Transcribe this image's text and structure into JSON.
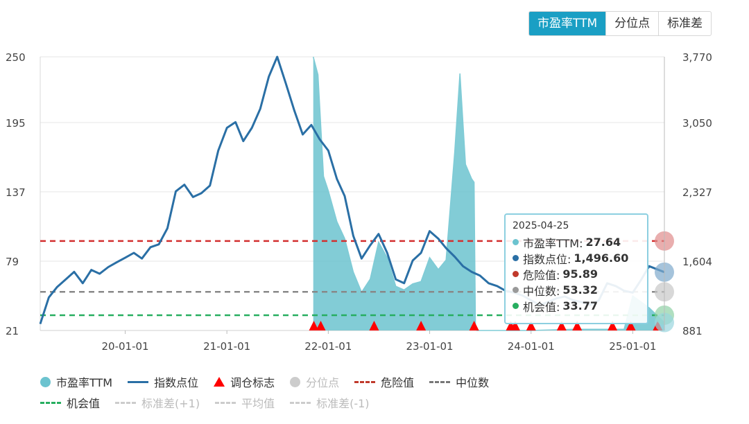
{
  "tabs": [
    {
      "label": "市盈率TTM",
      "active": true
    },
    {
      "label": "分位点",
      "active": false
    },
    {
      "label": "标准差",
      "active": false
    }
  ],
  "chart_data": {
    "type": "line",
    "left_axis": {
      "ticks": [
        21,
        79,
        137,
        195,
        250
      ],
      "range": [
        21,
        250
      ]
    },
    "right_axis": {
      "ticks": [
        881,
        1604,
        2327,
        3050,
        3770
      ],
      "range": [
        881,
        3770
      ]
    },
    "x_axis": {
      "ticks": [
        "20-01-01",
        "21-01-01",
        "22-01-01",
        "23-01-01",
        "24-01-01",
        "25-01-01"
      ],
      "range": [
        "2019-03-01",
        "2025-04-25"
      ]
    },
    "reference_lines": [
      {
        "name": "危险值",
        "value": 95.89,
        "color": "#d32f2f"
      },
      {
        "name": "中位数",
        "value": 53.32,
        "color": "#888888"
      },
      {
        "name": "机会值",
        "value": 33.77,
        "color": "#27ae60"
      }
    ],
    "series": [
      {
        "name": "指数点位",
        "axis": "right",
        "color": "#2a6fa5",
        "points": [
          [
            "2019-03-01",
            950
          ],
          [
            "2019-04-01",
            1230
          ],
          [
            "2019-05-01",
            1340
          ],
          [
            "2019-06-01",
            1420
          ],
          [
            "2019-07-01",
            1500
          ],
          [
            "2019-08-01",
            1380
          ],
          [
            "2019-09-01",
            1520
          ],
          [
            "2019-10-01",
            1480
          ],
          [
            "2019-11-01",
            1550
          ],
          [
            "2019-12-01",
            1600
          ],
          [
            "2020-01-01",
            1650
          ],
          [
            "2020-02-01",
            1700
          ],
          [
            "2020-03-01",
            1640
          ],
          [
            "2020-04-01",
            1760
          ],
          [
            "2020-05-01",
            1790
          ],
          [
            "2020-06-01",
            1960
          ],
          [
            "2020-07-01",
            2350
          ],
          [
            "2020-08-01",
            2420
          ],
          [
            "2020-09-01",
            2290
          ],
          [
            "2020-10-01",
            2330
          ],
          [
            "2020-11-01",
            2410
          ],
          [
            "2020-12-01",
            2780
          ],
          [
            "2021-01-01",
            3020
          ],
          [
            "2021-02-01",
            3080
          ],
          [
            "2021-03-01",
            2880
          ],
          [
            "2021-04-01",
            3020
          ],
          [
            "2021-05-01",
            3220
          ],
          [
            "2021-06-01",
            3560
          ],
          [
            "2021-07-01",
            3770
          ],
          [
            "2021-08-01",
            3490
          ],
          [
            "2021-09-01",
            3200
          ],
          [
            "2021-10-01",
            2950
          ],
          [
            "2021-11-01",
            3050
          ],
          [
            "2021-12-01",
            2900
          ],
          [
            "2022-01-01",
            2780
          ],
          [
            "2022-02-01",
            2480
          ],
          [
            "2022-03-01",
            2300
          ],
          [
            "2022-04-01",
            1880
          ],
          [
            "2022-05-01",
            1640
          ],
          [
            "2022-06-01",
            1780
          ],
          [
            "2022-07-01",
            1900
          ],
          [
            "2022-08-01",
            1700
          ],
          [
            "2022-09-01",
            1420
          ],
          [
            "2022-10-01",
            1380
          ],
          [
            "2022-11-01",
            1620
          ],
          [
            "2022-12-01",
            1700
          ],
          [
            "2023-01-01",
            1930
          ],
          [
            "2023-02-01",
            1850
          ],
          [
            "2023-03-01",
            1750
          ],
          [
            "2023-04-01",
            1660
          ],
          [
            "2023-05-01",
            1560
          ],
          [
            "2023-06-01",
            1500
          ],
          [
            "2023-07-01",
            1460
          ],
          [
            "2023-08-01",
            1380
          ],
          [
            "2023-09-01",
            1350
          ],
          [
            "2023-10-01",
            1300
          ],
          [
            "2023-11-01",
            1280
          ],
          [
            "2023-12-01",
            1250
          ],
          [
            "2024-01-01",
            1200
          ],
          [
            "2024-02-01",
            1150
          ],
          [
            "2024-03-01",
            1180
          ],
          [
            "2024-04-01",
            1220
          ],
          [
            "2024-05-01",
            1240
          ],
          [
            "2024-06-01",
            1200
          ],
          [
            "2024-07-01",
            1180
          ],
          [
            "2024-08-01",
            1150
          ],
          [
            "2024-09-01",
            1200
          ],
          [
            "2024-10-01",
            1380
          ],
          [
            "2024-11-01",
            1350
          ],
          [
            "2024-12-01",
            1300
          ],
          [
            "2025-01-01",
            1280
          ],
          [
            "2025-02-01",
            1420
          ],
          [
            "2025-03-01",
            1560
          ],
          [
            "2025-04-25",
            1496.6
          ]
        ]
      },
      {
        "name": "市盈率TTM",
        "axis": "left",
        "color": "#6cc3cf",
        "points": [
          [
            "2021-11-08",
            250
          ],
          [
            "2021-11-25",
            235
          ],
          [
            "2021-12-15",
            150
          ],
          [
            "2022-01-01",
            138
          ],
          [
            "2022-02-01",
            112
          ],
          [
            "2022-03-01",
            98
          ],
          [
            "2022-04-01",
            70
          ],
          [
            "2022-05-01",
            53
          ],
          [
            "2022-06-01",
            64
          ],
          [
            "2022-07-01",
            95
          ],
          [
            "2022-08-01",
            82
          ],
          [
            "2022-09-01",
            58
          ],
          [
            "2022-10-01",
            55
          ],
          [
            "2022-11-01",
            60
          ],
          [
            "2022-12-01",
            62
          ],
          [
            "2023-01-01",
            82
          ],
          [
            "2023-02-01",
            72
          ],
          [
            "2023-03-01",
            80
          ],
          [
            "2023-04-01",
            170
          ],
          [
            "2023-04-20",
            236
          ],
          [
            "2023-05-10",
            160
          ],
          [
            "2023-06-01",
            148
          ],
          [
            "2023-06-10",
            145
          ],
          [
            "2023-06-15",
            22
          ],
          [
            "2023-06-20",
            21
          ],
          [
            "2024-01-01",
            21
          ],
          [
            "2024-06-01",
            22
          ],
          [
            "2024-10-01",
            22
          ],
          [
            "2024-12-01",
            22
          ],
          [
            "2025-01-01",
            50
          ],
          [
            "2025-03-01",
            40
          ],
          [
            "2025-04-25",
            27.64
          ]
        ]
      }
    ],
    "markers": {
      "name": "调仓标志",
      "dates": [
        "2021-11-10",
        "2021-12-05",
        "2022-06-15",
        "2022-12-01",
        "2023-06-10",
        "2023-10-20",
        "2023-11-05",
        "2024-01-01",
        "2024-04-20",
        "2024-06-15",
        "2024-10-20",
        "2024-12-25",
        "2025-04-01"
      ]
    },
    "tooltip": {
      "date": "2025-04-25",
      "rows": [
        {
          "label": "市盈率TTM:",
          "value": "27.64",
          "color": "#6cc3cf"
        },
        {
          "label": "指数点位:",
          "value": "1,496.60",
          "color": "#2a6fa5"
        },
        {
          "label": "危险值:",
          "value": "95.89",
          "color": "#c0392b"
        },
        {
          "label": "中位数:",
          "value": "53.32",
          "color": "#999999"
        },
        {
          "label": "机会值:",
          "value": "33.77",
          "color": "#27ae60"
        }
      ]
    }
  },
  "legend": [
    {
      "label": "市盈率TTM",
      "kind": "dot",
      "color": "#6cc3cf",
      "dim": false
    },
    {
      "label": "指数点位",
      "kind": "line",
      "color": "#2a6fa5",
      "dim": false
    },
    {
      "label": "调仓标志",
      "kind": "tri",
      "color": "#ff0000",
      "dim": false
    },
    {
      "label": "分位点",
      "kind": "dot",
      "color": "#cccccc",
      "dim": true
    },
    {
      "label": "危险值",
      "kind": "dash",
      "color": "#c0392b",
      "dim": false
    },
    {
      "label": "中位数",
      "kind": "dash",
      "color": "#777777",
      "dim": false
    },
    {
      "label": "机会值",
      "kind": "dash",
      "color": "#27ae60",
      "dim": false
    },
    {
      "label": "标准差(+1)",
      "kind": "dash",
      "color": "#cccccc",
      "dim": true
    },
    {
      "label": "平均值",
      "kind": "dash",
      "color": "#cccccc",
      "dim": true
    },
    {
      "label": "标准差(-1)",
      "kind": "dash",
      "color": "#cccccc",
      "dim": true
    }
  ]
}
